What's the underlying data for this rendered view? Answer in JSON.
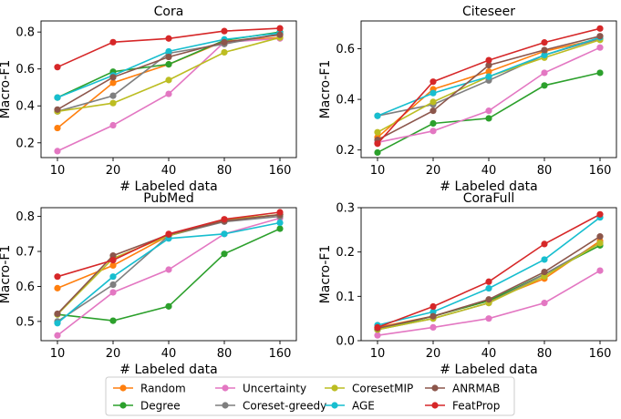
{
  "figure": {
    "x_categories": [
      "10",
      "20",
      "40",
      "80",
      "160"
    ],
    "legend": [
      "Random",
      "Degree",
      "Uncertainty",
      "Coreset-greedy",
      "CoresetMIP",
      "AGE",
      "ANRMAB",
      "FeatProp"
    ],
    "colors": {
      "Random": "#ff7f0e",
      "Degree": "#2ca02c",
      "Uncertainty": "#e377c2",
      "Coreset-greedy": "#7f7f7f",
      "CoresetMIP": "#bcbd22",
      "AGE": "#17becf",
      "ANRMAB": "#8c564b",
      "FeatProp": "#d62728"
    }
  },
  "chart_data": [
    {
      "type": "line",
      "title": "Cora",
      "xlabel": "# Labeled data",
      "ylabel": "Macro-F1",
      "ylim": [
        0.12,
        0.86
      ],
      "yticks": [
        0.2,
        0.4,
        0.6,
        0.8
      ],
      "ytick_labels": [
        "0.2",
        "0.4",
        "0.6",
        "0.8"
      ],
      "categories": [
        "10",
        "20",
        "40",
        "80",
        "160"
      ],
      "series": [
        {
          "name": "Random",
          "values": [
            0.28,
            0.525,
            0.625,
            0.75,
            0.77
          ]
        },
        {
          "name": "Degree",
          "values": [
            0.445,
            0.585,
            0.625,
            0.755,
            0.8
          ]
        },
        {
          "name": "Uncertainty",
          "values": [
            0.155,
            0.295,
            0.465,
            0.745,
            0.765
          ]
        },
        {
          "name": "Coreset-greedy",
          "values": [
            0.37,
            0.455,
            0.685,
            0.735,
            0.79
          ]
        },
        {
          "name": "CoresetMIP",
          "values": [
            0.37,
            0.415,
            0.54,
            0.69,
            0.77
          ]
        },
        {
          "name": "AGE",
          "values": [
            0.445,
            0.565,
            0.695,
            0.76,
            0.795
          ]
        },
        {
          "name": "ANRMAB",
          "values": [
            0.38,
            0.555,
            0.665,
            0.745,
            0.785
          ]
        },
        {
          "name": "FeatProp",
          "values": [
            0.61,
            0.745,
            0.765,
            0.805,
            0.82
          ]
        }
      ]
    },
    {
      "type": "line",
      "title": "Citeseer",
      "xlabel": "# Labeled data",
      "ylabel": "Macro-F1",
      "ylim": [
        0.17,
        0.71
      ],
      "yticks": [
        0.2,
        0.4,
        0.6
      ],
      "ytick_labels": [
        "0.2",
        "0.4",
        "0.6"
      ],
      "categories": [
        "10",
        "20",
        "40",
        "80",
        "160"
      ],
      "series": [
        {
          "name": "Random",
          "values": [
            0.25,
            0.44,
            0.51,
            0.59,
            0.64
          ]
        },
        {
          "name": "Degree",
          "values": [
            0.19,
            0.305,
            0.325,
            0.455,
            0.505
          ]
        },
        {
          "name": "Uncertainty",
          "values": [
            0.23,
            0.275,
            0.355,
            0.505,
            0.605
          ]
        },
        {
          "name": "Coreset-greedy",
          "values": [
            0.335,
            0.38,
            0.475,
            0.575,
            0.64
          ]
        },
        {
          "name": "CoresetMIP",
          "values": [
            0.27,
            0.39,
            0.49,
            0.565,
            0.635
          ]
        },
        {
          "name": "AGE",
          "values": [
            0.335,
            0.425,
            0.49,
            0.575,
            0.645
          ]
        },
        {
          "name": "ANRMAB",
          "values": [
            0.24,
            0.355,
            0.535,
            0.595,
            0.65
          ]
        },
        {
          "name": "FeatProp",
          "values": [
            0.225,
            0.47,
            0.555,
            0.625,
            0.68
          ]
        }
      ]
    },
    {
      "type": "line",
      "title": "PubMed",
      "xlabel": "# Labeled data",
      "ylabel": "Macro-F1",
      "ylim": [
        0.445,
        0.825
      ],
      "yticks": [
        0.5,
        0.6,
        0.7,
        0.8
      ],
      "ytick_labels": [
        "0.5",
        "0.6",
        "0.7",
        "0.8"
      ],
      "categories": [
        "10",
        "20",
        "40",
        "80",
        "160"
      ],
      "series": [
        {
          "name": "Random",
          "values": [
            0.595,
            0.66,
            0.745,
            0.79,
            0.805
          ]
        },
        {
          "name": "Degree",
          "values": [
            0.52,
            0.502,
            0.543,
            0.693,
            0.765
          ]
        },
        {
          "name": "Uncertainty",
          "values": [
            0.46,
            0.583,
            0.648,
            0.75,
            0.795
          ]
        },
        {
          "name": "Coreset-greedy",
          "values": [
            0.5,
            0.605,
            0.745,
            0.785,
            0.8
          ]
        },
        {
          "name": "CoresetMIP",
          "values": [
            0.52,
            0.68,
            0.745,
            0.79,
            0.805
          ]
        },
        {
          "name": "AGE",
          "values": [
            0.495,
            0.628,
            0.737,
            0.75,
            0.782
          ]
        },
        {
          "name": "ANRMAB",
          "values": [
            0.522,
            0.688,
            0.748,
            0.787,
            0.805
          ]
        },
        {
          "name": "FeatProp",
          "values": [
            0.628,
            0.675,
            0.75,
            0.792,
            0.812
          ]
        }
      ]
    },
    {
      "type": "line",
      "title": "CoraFull",
      "xlabel": "# Labeled data",
      "ylabel": "Macro-F1",
      "ylim": [
        0.0,
        0.3
      ],
      "yticks": [
        0.0,
        0.1,
        0.2,
        0.3
      ],
      "ytick_labels": [
        "0.0",
        "0.1",
        "0.2",
        "0.3"
      ],
      "categories": [
        "10",
        "20",
        "40",
        "80",
        "160"
      ],
      "series": [
        {
          "name": "Random",
          "values": [
            0.03,
            0.055,
            0.09,
            0.14,
            0.225
          ]
        },
        {
          "name": "Degree",
          "values": [
            0.025,
            0.055,
            0.09,
            0.15,
            0.215
          ]
        },
        {
          "name": "Uncertainty",
          "values": [
            0.012,
            0.03,
            0.05,
            0.085,
            0.158
          ]
        },
        {
          "name": "Coreset-greedy",
          "values": [
            0.025,
            0.05,
            0.085,
            0.15,
            0.22
          ]
        },
        {
          "name": "CoresetMIP",
          "values": [
            0.025,
            0.05,
            0.085,
            0.145,
            0.22
          ]
        },
        {
          "name": "AGE",
          "values": [
            0.035,
            0.065,
            0.118,
            0.183,
            0.278
          ]
        },
        {
          "name": "ANRMAB",
          "values": [
            0.028,
            0.055,
            0.093,
            0.155,
            0.235
          ]
        },
        {
          "name": "FeatProp",
          "values": [
            0.03,
            0.077,
            0.133,
            0.218,
            0.285
          ]
        }
      ]
    }
  ]
}
